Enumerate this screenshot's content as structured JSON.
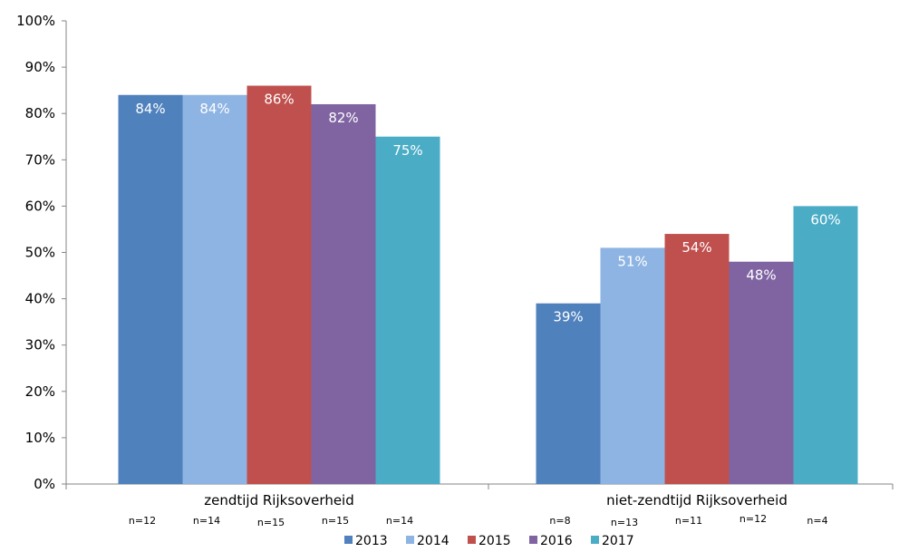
{
  "chart_data": {
    "type": "bar",
    "categories": [
      "zendtijd  Rijksoverheid",
      "niet-zendtijd Rijksoverheid"
    ],
    "series": [
      {
        "name": "2013",
        "color": "#4F81BD",
        "values": [
          84,
          39
        ],
        "labels": [
          "84%",
          "39%"
        ],
        "n": [
          "n=12",
          "n=8"
        ]
      },
      {
        "name": "2014",
        "color": "#8EB4E3",
        "values": [
          84,
          51
        ],
        "labels": [
          "84%",
          "51%"
        ],
        "n": [
          "n=14",
          "n=13"
        ]
      },
      {
        "name": "2015",
        "color": "#C0504D",
        "values": [
          86,
          54
        ],
        "labels": [
          "86%",
          "54%"
        ],
        "n": [
          "n=15",
          "n=11"
        ]
      },
      {
        "name": "2016",
        "color": "#8064A2",
        "values": [
          82,
          48
        ],
        "labels": [
          "82%",
          "48%"
        ],
        "n": [
          "n=15",
          "n=12"
        ]
      },
      {
        "name": "2017",
        "color": "#4BACC6",
        "values": [
          75,
          60
        ],
        "labels": [
          "75%",
          "60%"
        ],
        "n": [
          "n=14",
          "n=4"
        ]
      }
    ],
    "ylim": [
      0,
      100
    ],
    "yticks": [
      "0%",
      "10%",
      "20%",
      "30%",
      "40%",
      "50%",
      "60%",
      "70%",
      "80%",
      "90%",
      "100%"
    ],
    "grid": false,
    "legend": "bottom"
  }
}
